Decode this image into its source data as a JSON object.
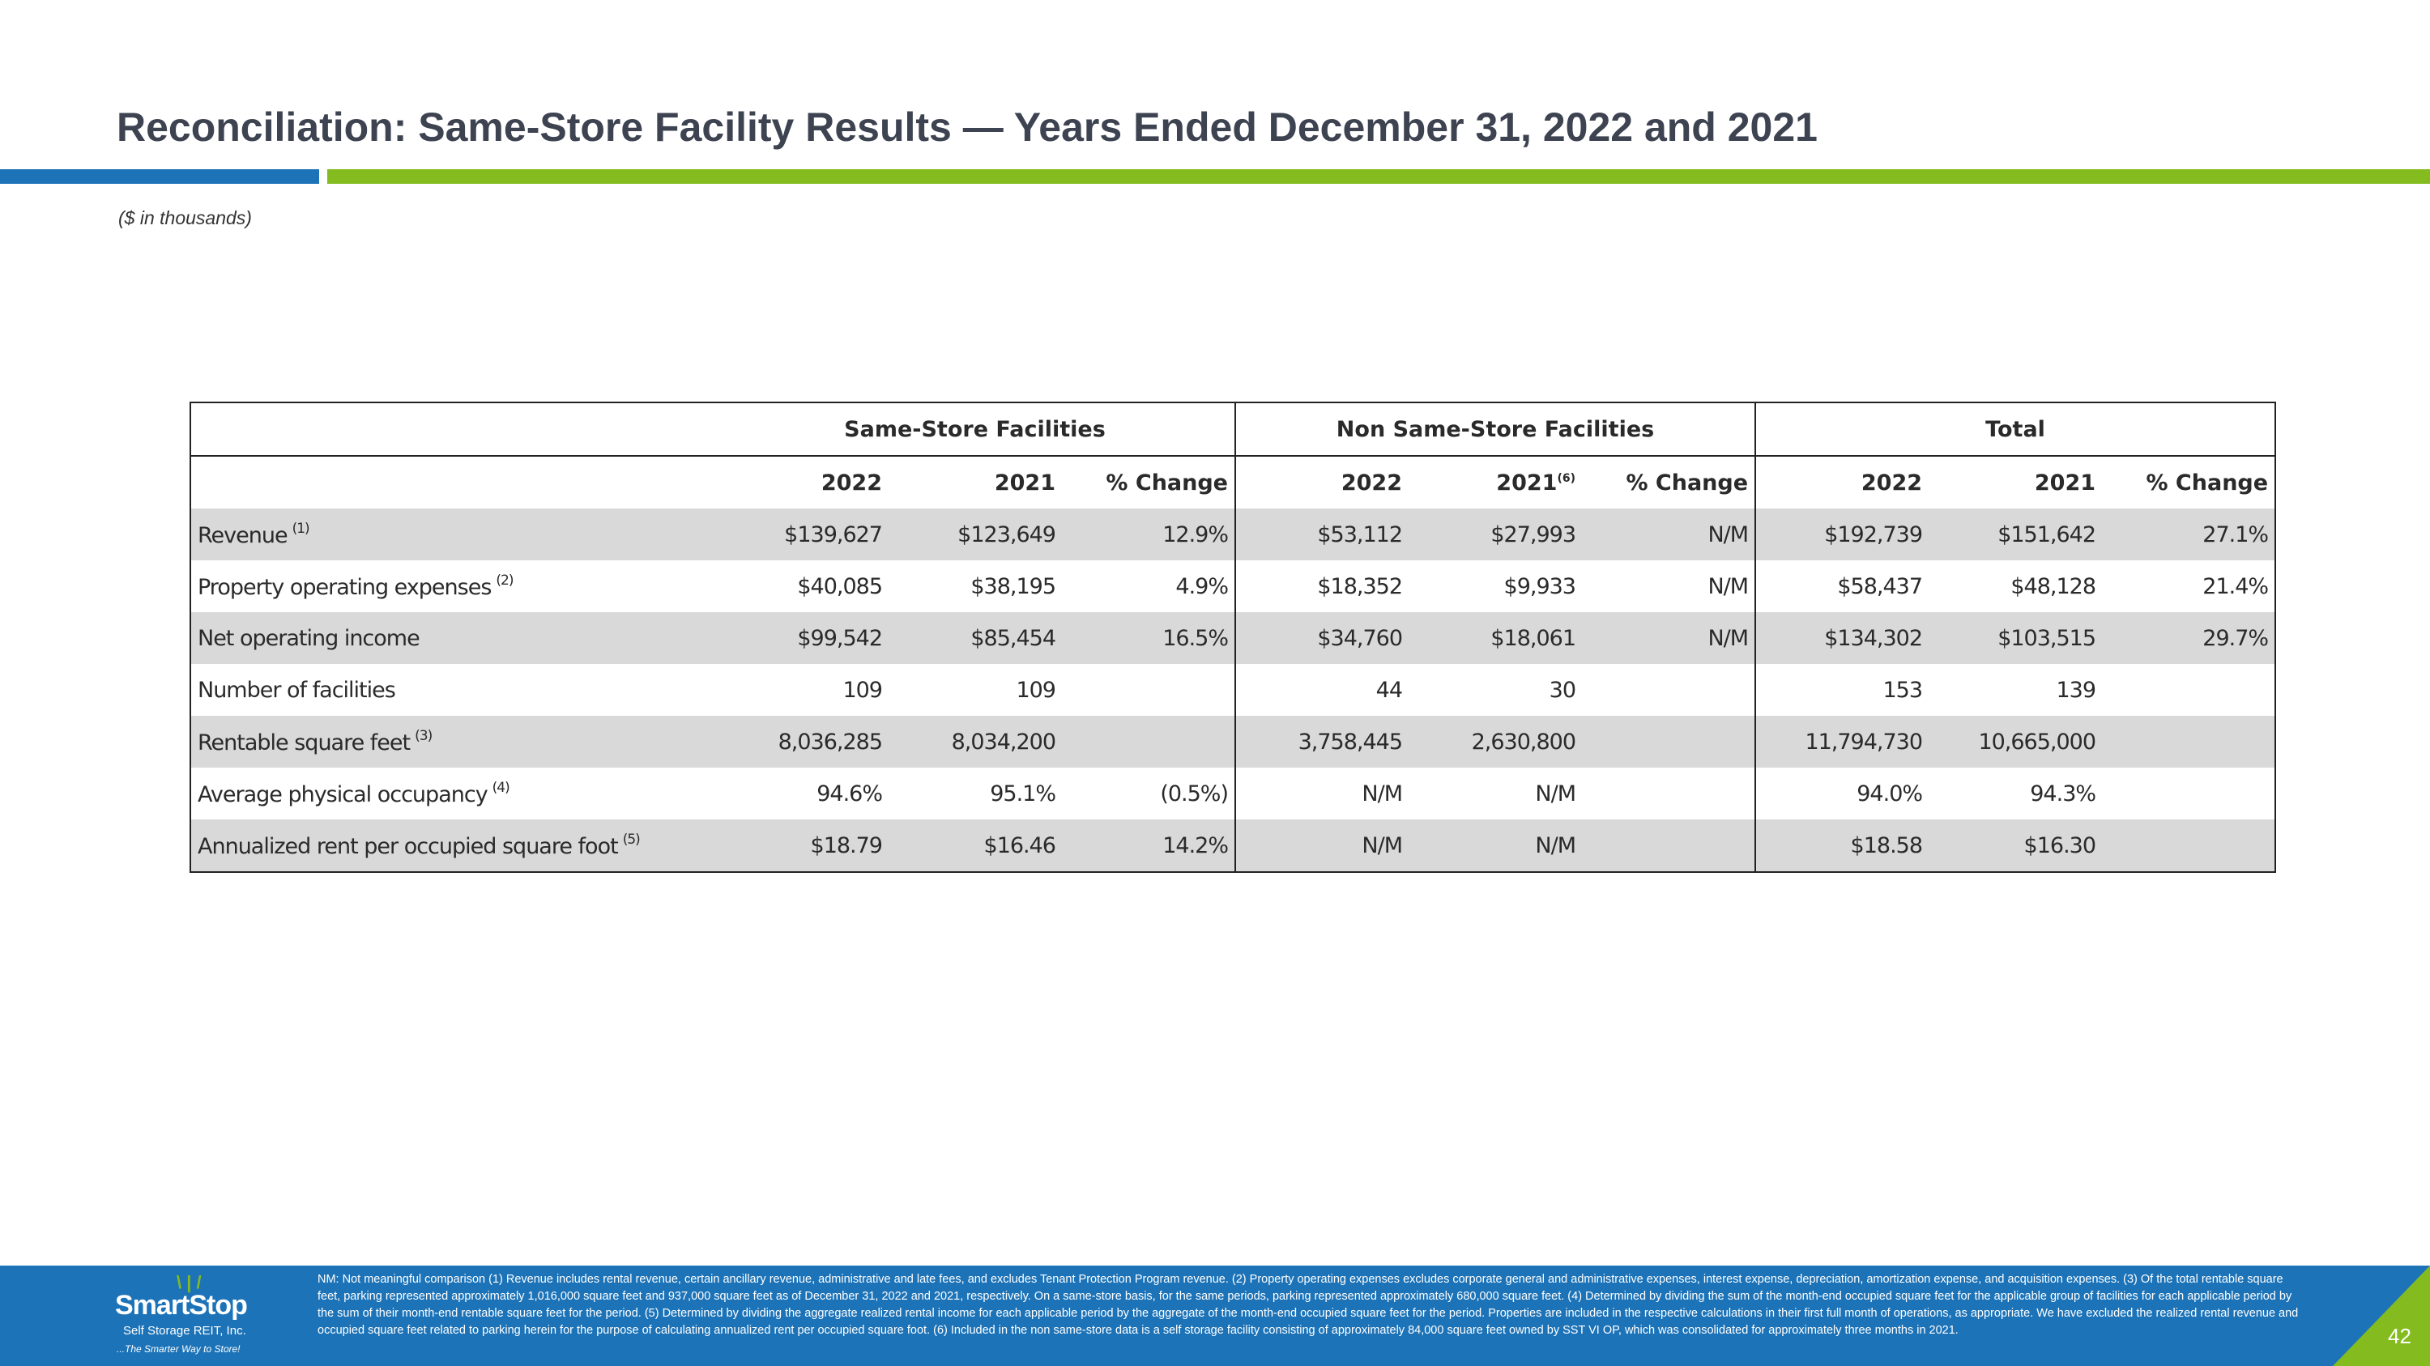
{
  "header": {
    "title": "Reconciliation: Same-Store Facility Results — Years Ended December 31, 2022 and 2021",
    "units_note": "($ in thousands)"
  },
  "table": {
    "groups": {
      "same_store": "Same-Store Facilities",
      "non_same_store": "Non Same-Store Facilities",
      "total": "Total"
    },
    "columns": {
      "y2022": "2022",
      "y2021": "2021",
      "y2021_fn": "(6)",
      "pct": "% Change"
    },
    "rows": [
      {
        "label": "Revenue",
        "fn": "(1)",
        "values": [
          "$139,627",
          "$123,649",
          "12.9%",
          "$53,112",
          "$27,993",
          "N/M",
          "$192,739",
          "$151,642",
          "27.1%"
        ]
      },
      {
        "label": "Property operating expenses",
        "fn": "(2)",
        "values": [
          "$40,085",
          "$38,195",
          "4.9%",
          "$18,352",
          "$9,933",
          "N/M",
          "$58,437",
          "$48,128",
          "21.4%"
        ]
      },
      {
        "label": "Net operating income",
        "fn": "",
        "values": [
          "$99,542",
          "$85,454",
          "16.5%",
          "$34,760",
          "$18,061",
          "N/M",
          "$134,302",
          "$103,515",
          "29.7%"
        ]
      },
      {
        "label": "Number of facilities",
        "fn": "",
        "values": [
          "109",
          "109",
          "",
          "44",
          "30",
          "",
          "153",
          "139",
          ""
        ]
      },
      {
        "label": "Rentable square feet",
        "fn": "(3)",
        "values": [
          "8,036,285",
          "8,034,200",
          "",
          "3,758,445",
          "2,630,800",
          "",
          "11,794,730",
          "10,665,000",
          ""
        ]
      },
      {
        "label": "Average physical occupancy",
        "fn": "(4)",
        "values": [
          "94.6%",
          "95.1%",
          "(0.5%)",
          "N/M",
          "N/M",
          "",
          "94.0%",
          "94.3%",
          ""
        ]
      },
      {
        "label": "Annualized rent per occupied square foot",
        "fn": "(5)",
        "values": [
          "$18.79",
          "$16.46",
          "14.2%",
          "N/M",
          "N/M",
          "",
          "$18.58",
          "$16.30",
          ""
        ]
      }
    ]
  },
  "footer": {
    "logo_name": "SmartStop",
    "logo_sub": "Self Storage REIT, Inc.",
    "logo_tag": "...The Smarter Way to Store!",
    "footnotes": "NM: Not meaningful comparison  (1) Revenue includes rental revenue, certain ancillary revenue, administrative and late fees, and excludes Tenant Protection Program revenue. (2) Property operating expenses excludes corporate general and administrative expenses, interest expense, depreciation, amortization expense, and acquisition expenses. (3) Of the total rentable square feet, parking represented approximately 1,016,000 square feet and 937,000 square feet as of December 31, 2022 and 2021, respectively. On a same-store basis, for the same periods, parking represented approximately 680,000 square feet. (4) Determined by dividing the sum of the month-end occupied square feet for the applicable group of facilities for each applicable period by the sum of their month-end rentable square feet for the period. (5) Determined by dividing the aggregate realized rental income for each applicable period by the aggregate of the month-end occupied square feet for the period. Properties are included in the respective calculations in their first full month of operations, as appropriate. We have excluded the realized rental revenue and occupied square feet related to parking herein for the purpose of calculating annualized rent per occupied square foot. (6) Included in the non same-store data is a self storage facility consisting of approximately 84,000 square feet owned by SST VI OP, which was consolidated for approximately three months in 2021.",
    "page_number": "42"
  },
  "colors": {
    "title": "#3d4350",
    "brand_blue": "#1c73b8",
    "brand_green": "#84bc1f",
    "row_shade": "#d9d9d9"
  }
}
